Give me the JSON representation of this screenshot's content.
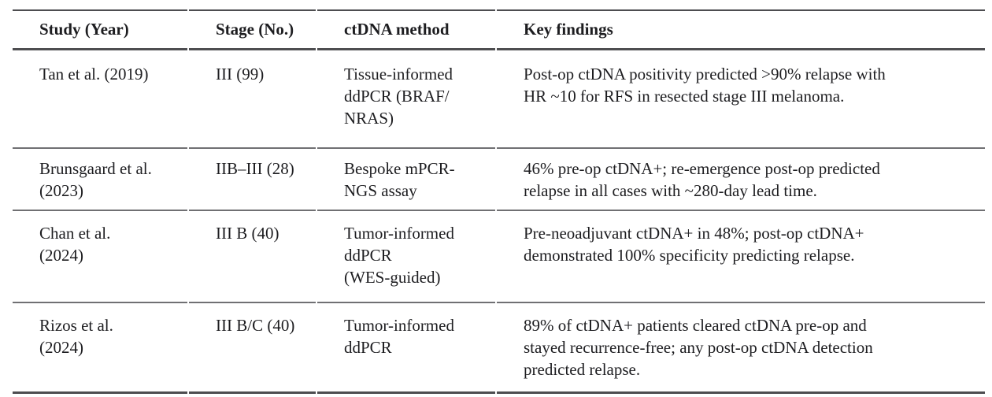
{
  "table": {
    "headers": [
      "Study (Year)",
      "Stage (No.)",
      "ctDNA method",
      "Key findings"
    ],
    "rows": [
      {
        "study": "Tan et al. (2019)",
        "stage": "III (99)",
        "method": "Tissue-informed\nddPCR (BRAF/\nNRAS)",
        "findings": "Post-op ctDNA positivity predicted >90% relapse with\nHR ~10 for RFS in resected stage III melanoma."
      },
      {
        "study": "Brunsgaard et al.\n(2023)",
        "stage": "IIB–III (28)",
        "method": "Bespoke mPCR-\nNGS assay",
        "findings": "46% pre-op ctDNA+; re-emergence post-op predicted\nrelapse in all cases with ~280-day lead time."
      },
      {
        "study": "Chan et al.\n(2024)",
        "stage": "III B (40)",
        "method": "Tumor-informed\nddPCR\n(WES-guided)",
        "findings": "Pre-neoadjuvant ctDNA+ in 48%; post-op ctDNA+\ndemonstrated 100% specificity predicting relapse."
      },
      {
        "study": "Rizos et al.\n(2024)",
        "stage": "III B/C (40)",
        "method": "Tumor-informed\nddPCR",
        "findings": "89% of ctDNA+ patients cleared ctDNA pre-op and\nstayed recurrence-free; any post-op ctDNA detection\npredicted relapse."
      }
    ]
  },
  "colors": {
    "background": "#ffffff",
    "text": "#1d1d20",
    "rule_heavy": "#4d4d50",
    "rule_light": "#707073"
  }
}
